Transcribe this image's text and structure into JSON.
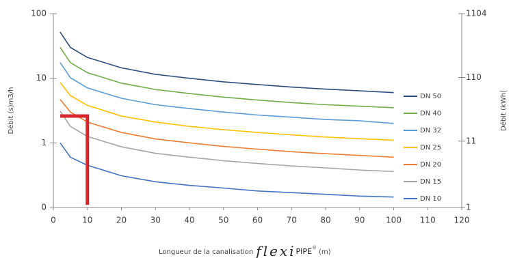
{
  "chart_data": {
    "type": "line",
    "y_label": "Débit (s)m3/h",
    "y2_label": "Débit (kWh)",
    "x_label_parts": [
      "Longueur de la canalisation",
      "flexi",
      "PIPE",
      "®",
      "(m)"
    ],
    "x": [
      2,
      5,
      10,
      20,
      30,
      40,
      50,
      60,
      70,
      80,
      90,
      100
    ],
    "series": [
      {
        "name": "DN 50",
        "color": "#2f4e7e",
        "values": [
          52,
          30,
          21,
          14.5,
          11.5,
          10,
          8.8,
          8.0,
          7.3,
          6.8,
          6.4,
          6.0
        ]
      },
      {
        "name": "DN 40",
        "color": "#70ad47",
        "values": [
          30,
          17.5,
          12.2,
          8.4,
          6.7,
          5.8,
          5.1,
          4.6,
          4.2,
          3.9,
          3.7,
          3.5
        ]
      },
      {
        "name": "DN 32",
        "color": "#5b9bd5",
        "values": [
          17.5,
          10.2,
          7.1,
          4.9,
          3.9,
          3.4,
          3.0,
          2.7,
          2.5,
          2.3,
          2.2,
          2.0
        ]
      },
      {
        "name": "DN 25",
        "color": "#ffc000",
        "values": [
          8.6,
          5.4,
          3.8,
          2.6,
          2.1,
          1.8,
          1.6,
          1.45,
          1.33,
          1.23,
          1.16,
          1.1
        ]
      },
      {
        "name": "DN 20",
        "color": "#ed7d31",
        "values": [
          4.7,
          3.0,
          2.1,
          1.45,
          1.15,
          1.0,
          0.88,
          0.8,
          0.73,
          0.68,
          0.64,
          0.6
        ]
      },
      {
        "name": "DN 15",
        "color": "#a5a5a5",
        "values": [
          3.1,
          1.8,
          1.26,
          0.87,
          0.69,
          0.6,
          0.53,
          0.48,
          0.44,
          0.41,
          0.38,
          0.36
        ]
      },
      {
        "name": "DN 10",
        "color": "#4472c4",
        "values": [
          1.0,
          0.6,
          0.45,
          0.31,
          0.25,
          0.22,
          0.2,
          0.18,
          0.17,
          0.16,
          0.15,
          0.145
        ]
      }
    ],
    "annotation_line": {
      "color": "#d9262c",
      "x": [
        2,
        10,
        10
      ],
      "y": [
        2.6,
        2.6,
        0.11
      ]
    },
    "xlim": [
      0,
      120
    ],
    "xticks": [
      0,
      10,
      20,
      30,
      40,
      50,
      60,
      70,
      80,
      90,
      100,
      110,
      120
    ],
    "ylim": [
      0.1,
      100
    ],
    "yticks": [
      {
        "value": 0.1,
        "label": "0"
      },
      1,
      10,
      100
    ],
    "y2lim": [
      1,
      1104
    ],
    "y2ticks": [
      1,
      11,
      110,
      1104
    ],
    "log_scale": true,
    "grid": false
  }
}
